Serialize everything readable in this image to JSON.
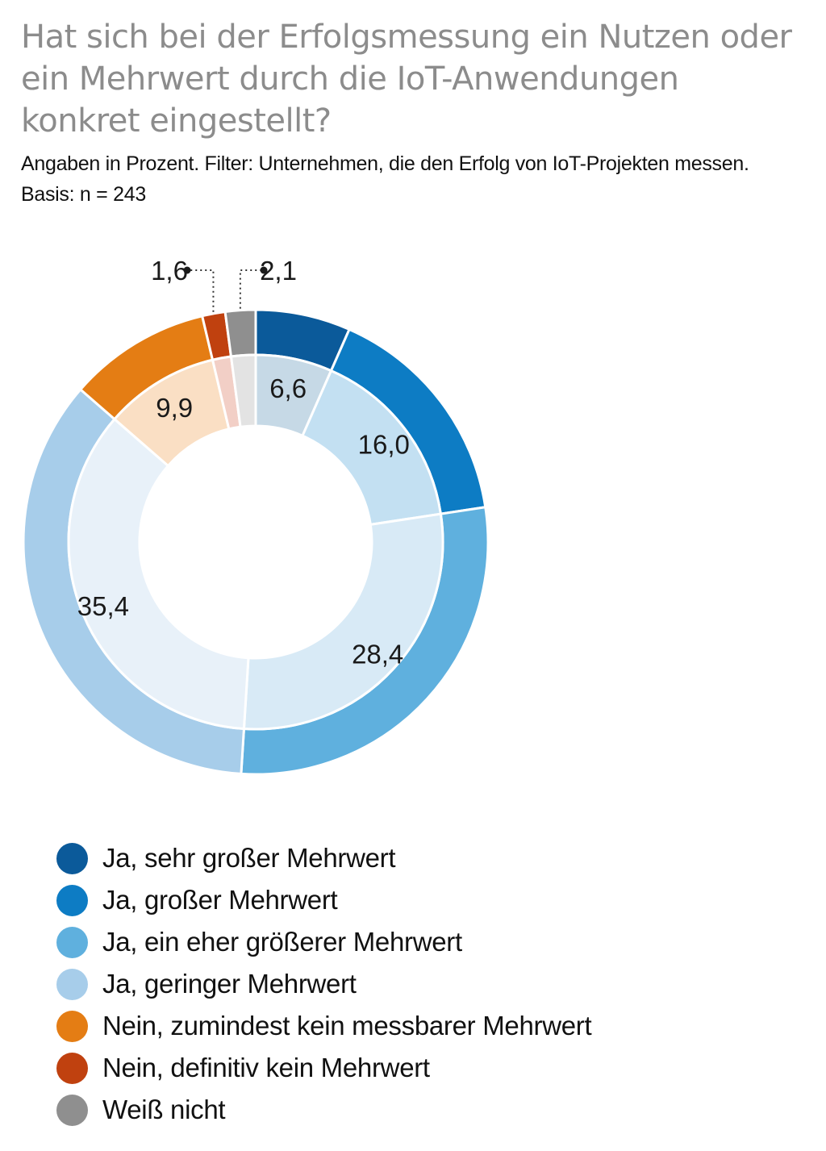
{
  "header": {
    "title": "Hat sich bei der Erfolgsmessung ein Nutzen oder ein Mehrwert durch die IoT-Anwendungen konkret eingestellt?",
    "subtitle_line1": "Angaben in Prozent. Filter: Unternehmen, die den Erfolg von IoT-Projekten messen.",
    "subtitle_line2": "Basis: n = 243"
  },
  "chart_data": {
    "type": "pie",
    "variant": "donut",
    "title": "Hat sich bei der Erfolgsmessung ein Nutzen oder ein Mehrwert durch die IoT-Anwendungen konkret eingestellt?",
    "categories": [
      "Ja, sehr großer Mehrwert",
      "Ja, großer Mehrwert",
      "Ja, ein eher größerer Mehrwert",
      "Ja, geringer Mehrwert",
      "Nein, zumindest kein messbarer Mehrwert",
      "Nein, definitiv kein Mehrwert",
      "Weiß nicht"
    ],
    "values": [
      6.6,
      16.0,
      28.4,
      35.4,
      9.9,
      1.6,
      2.1
    ],
    "value_labels": [
      "6,6",
      "16,0",
      "28,4",
      "35,4",
      "9,9",
      "1,6",
      "2,1"
    ],
    "colors": [
      "#0b5a9a",
      "#0d7cc4",
      "#5fb0de",
      "#a7cdea",
      "#e47d14",
      "#c0410f",
      "#8f8f8f"
    ],
    "inner_colors": [
      "#c6d9e6",
      "#c3e0f2",
      "#d8eaf6",
      "#e8f1f9",
      "#fadfc4",
      "#f2cfc6",
      "#e3e3e3"
    ],
    "legend_position": "bottom-left"
  }
}
